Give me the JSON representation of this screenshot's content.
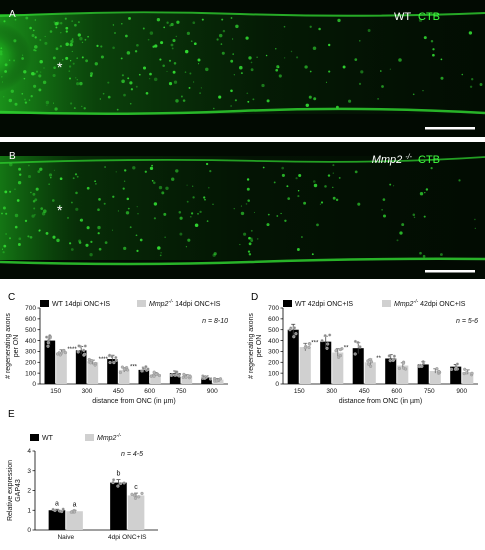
{
  "micrographs": [
    {
      "letter": "A",
      "label_prefix": "WT",
      "label_prefix_sup": "",
      "label_suffix": "CTB",
      "asterisk": "*"
    },
    {
      "letter": "B",
      "label_prefix": "Mmp2",
      "label_prefix_sup": "-/-",
      "label_suffix": "CTB",
      "asterisk": "*"
    }
  ],
  "colors": {
    "wt_bar": "#000000",
    "ko_bar": "#d0d0d0",
    "micrograph_bg": "#020a02",
    "fluorescence": "#33e033",
    "label_green": "#40ff40"
  },
  "chart_data": [
    {
      "panel": "C",
      "type": "bar",
      "legend": [
        "WT 14dpi ONC+IS",
        "Mmp2-/- 14dpi ONC+IS"
      ],
      "legend_display": [
        {
          "main": "WT 14dpi ONC+IS",
          "sup": "",
          "tail": ""
        },
        {
          "main": "Mmp2",
          "sup": "-/-",
          "tail": " 14dpi ONC+IS"
        }
      ],
      "n_text": "n = 8-10",
      "categories": [
        "150",
        "300",
        "450",
        "600",
        "750",
        "900"
      ],
      "series": [
        {
          "name": "WT 14dpi ONC+IS",
          "values": [
            400,
            310,
            230,
            130,
            100,
            60
          ],
          "errors": [
            40,
            35,
            35,
            25,
            20,
            15
          ]
        },
        {
          "name": "Mmp2-/- 14dpi ONC+IS",
          "values": [
            290,
            200,
            130,
            90,
            70,
            40
          ],
          "errors": [
            25,
            20,
            20,
            15,
            15,
            10
          ]
        }
      ],
      "significance": [
        "****",
        "****",
        "***",
        "",
        "",
        ""
      ],
      "ylabel_lines": [
        "# regenerating axons",
        "per ON"
      ],
      "xlabel": "distance from ONC (in µm)",
      "ylim": [
        0,
        700
      ],
      "yticks": [
        "0",
        "100",
        "200",
        "300",
        "400",
        "500",
        "600",
        "700"
      ]
    },
    {
      "panel": "D",
      "type": "bar",
      "legend": [
        "WT 42dpi ONC+IS",
        "Mmp2-/- 42dpi ONC+IS"
      ],
      "legend_display": [
        {
          "main": "WT 42dpi ONC+IS",
          "sup": "",
          "tail": ""
        },
        {
          "main": "Mmp2",
          "sup": "-/-",
          "tail": " 42dpi ONC+IS"
        }
      ],
      "n_text": "n = 5-6",
      "categories": [
        "150",
        "300",
        "450",
        "600",
        "750",
        "900"
      ],
      "series": [
        {
          "name": "WT 42dpi ONC+IS",
          "values": [
            500,
            390,
            330,
            235,
            180,
            160
          ],
          "errors": [
            50,
            50,
            50,
            35,
            25,
            20
          ]
        },
        {
          "name": "Mmp2-/- 42dpi ONC+IS",
          "values": [
            340,
            290,
            200,
            170,
            120,
            110
          ],
          "errors": [
            35,
            35,
            30,
            25,
            20,
            20
          ]
        }
      ],
      "significance": [
        "***",
        "**",
        "**",
        "",
        "",
        ""
      ],
      "ylabel_lines": [
        "# regenerating axons",
        "per ON"
      ],
      "xlabel": "distance from ONC (in µm)",
      "ylim": [
        0,
        700
      ],
      "yticks": [
        "0",
        "100",
        "200",
        "300",
        "400",
        "500",
        "600",
        "700"
      ]
    },
    {
      "panel": "E",
      "type": "bar",
      "legend": [
        "WT",
        "Mmp2-/-"
      ],
      "legend_display": [
        {
          "main": "WT",
          "sup": "",
          "tail": ""
        },
        {
          "main": "Mmp2",
          "sup": "-/-",
          "tail": ""
        }
      ],
      "n_text": "n = 4-5",
      "categories": [
        "Naive",
        "4dpi ONC+IS"
      ],
      "series": [
        {
          "name": "WT",
          "values": [
            1.0,
            2.4
          ],
          "errors": [
            0.05,
            0.15
          ]
        },
        {
          "name": "Mmp2-/-",
          "values": [
            0.95,
            1.75
          ],
          "errors": [
            0.05,
            0.12
          ]
        }
      ],
      "group_letters": [
        [
          "a",
          "a"
        ],
        [
          "b",
          "c"
        ]
      ],
      "ylabel_lines": [
        "Relative expression",
        "GAP43"
      ],
      "xlabel": "",
      "ylim": [
        0,
        4
      ],
      "yticks": [
        "0",
        "1",
        "2",
        "3",
        "4"
      ]
    }
  ]
}
